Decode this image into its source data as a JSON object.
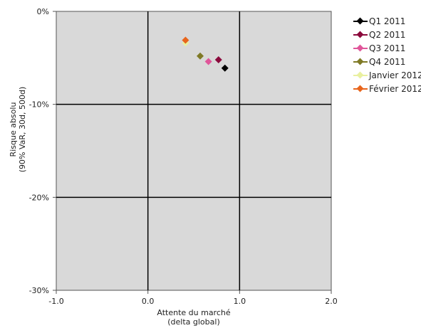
{
  "chart_data": {
    "type": "scatter",
    "xlabel": [
      "Attente du marché",
      "(delta global)"
    ],
    "ylabel": [
      "Risque absolu",
      "(90% VaR, 30d, 500d)"
    ],
    "xlim": [
      -1.0,
      2.0
    ],
    "ylim": [
      -0.3,
      0.0
    ],
    "x_ticks": [
      -1.0,
      0.0,
      1.0,
      2.0
    ],
    "x_tick_labels": [
      "-1.0",
      "0.0",
      "1.0",
      "2.0"
    ],
    "y_ticks": [
      0.0,
      -0.1,
      -0.2,
      -0.3
    ],
    "y_tick_labels": [
      "0%",
      "-10%",
      "-20%",
      "-30%"
    ],
    "grid": true,
    "legend_position": "right",
    "plot_background": "#d9d9d9",
    "series": [
      {
        "name": "Q1 2011",
        "color": "#000000",
        "points": [
          [
            0.84,
            -0.061
          ]
        ]
      },
      {
        "name": "Q2 2011",
        "color": "#8b0a3c",
        "points": [
          [
            0.77,
            -0.052
          ]
        ]
      },
      {
        "name": "Q3 2011",
        "color": "#e0569a",
        "points": [
          [
            0.66,
            -0.054
          ]
        ]
      },
      {
        "name": "Q4 2011",
        "color": "#7f7a26",
        "points": [
          [
            0.57,
            -0.048
          ]
        ]
      },
      {
        "name": "Janvier 2012",
        "color": "#e9f0a0",
        "points": [
          [
            0.41,
            -0.034
          ]
        ]
      },
      {
        "name": "Février 2012",
        "color": "#e8651c",
        "points": [
          [
            0.41,
            -0.031
          ]
        ]
      }
    ]
  }
}
